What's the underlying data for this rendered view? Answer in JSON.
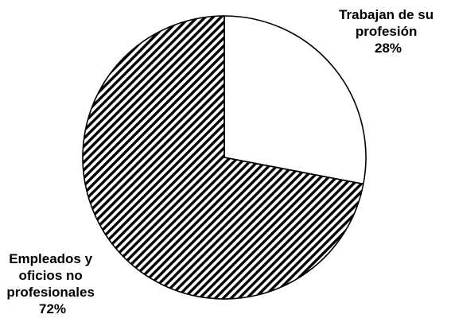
{
  "chart_data": {
    "type": "pie",
    "title": "",
    "start_angle_deg": 0,
    "direction": "clockwise",
    "legend": "none",
    "slices": [
      {
        "label_lines": [
          "Trabajan de su",
          "profesión",
          "28%"
        ],
        "value": 28,
        "fill": "white",
        "color": "#ffffff"
      },
      {
        "label_lines": [
          "Empleados y",
          "oficios no",
          "profesionales",
          "72%"
        ],
        "value": 72,
        "fill": "diagonal-hatch",
        "color": "#000000"
      }
    ]
  }
}
